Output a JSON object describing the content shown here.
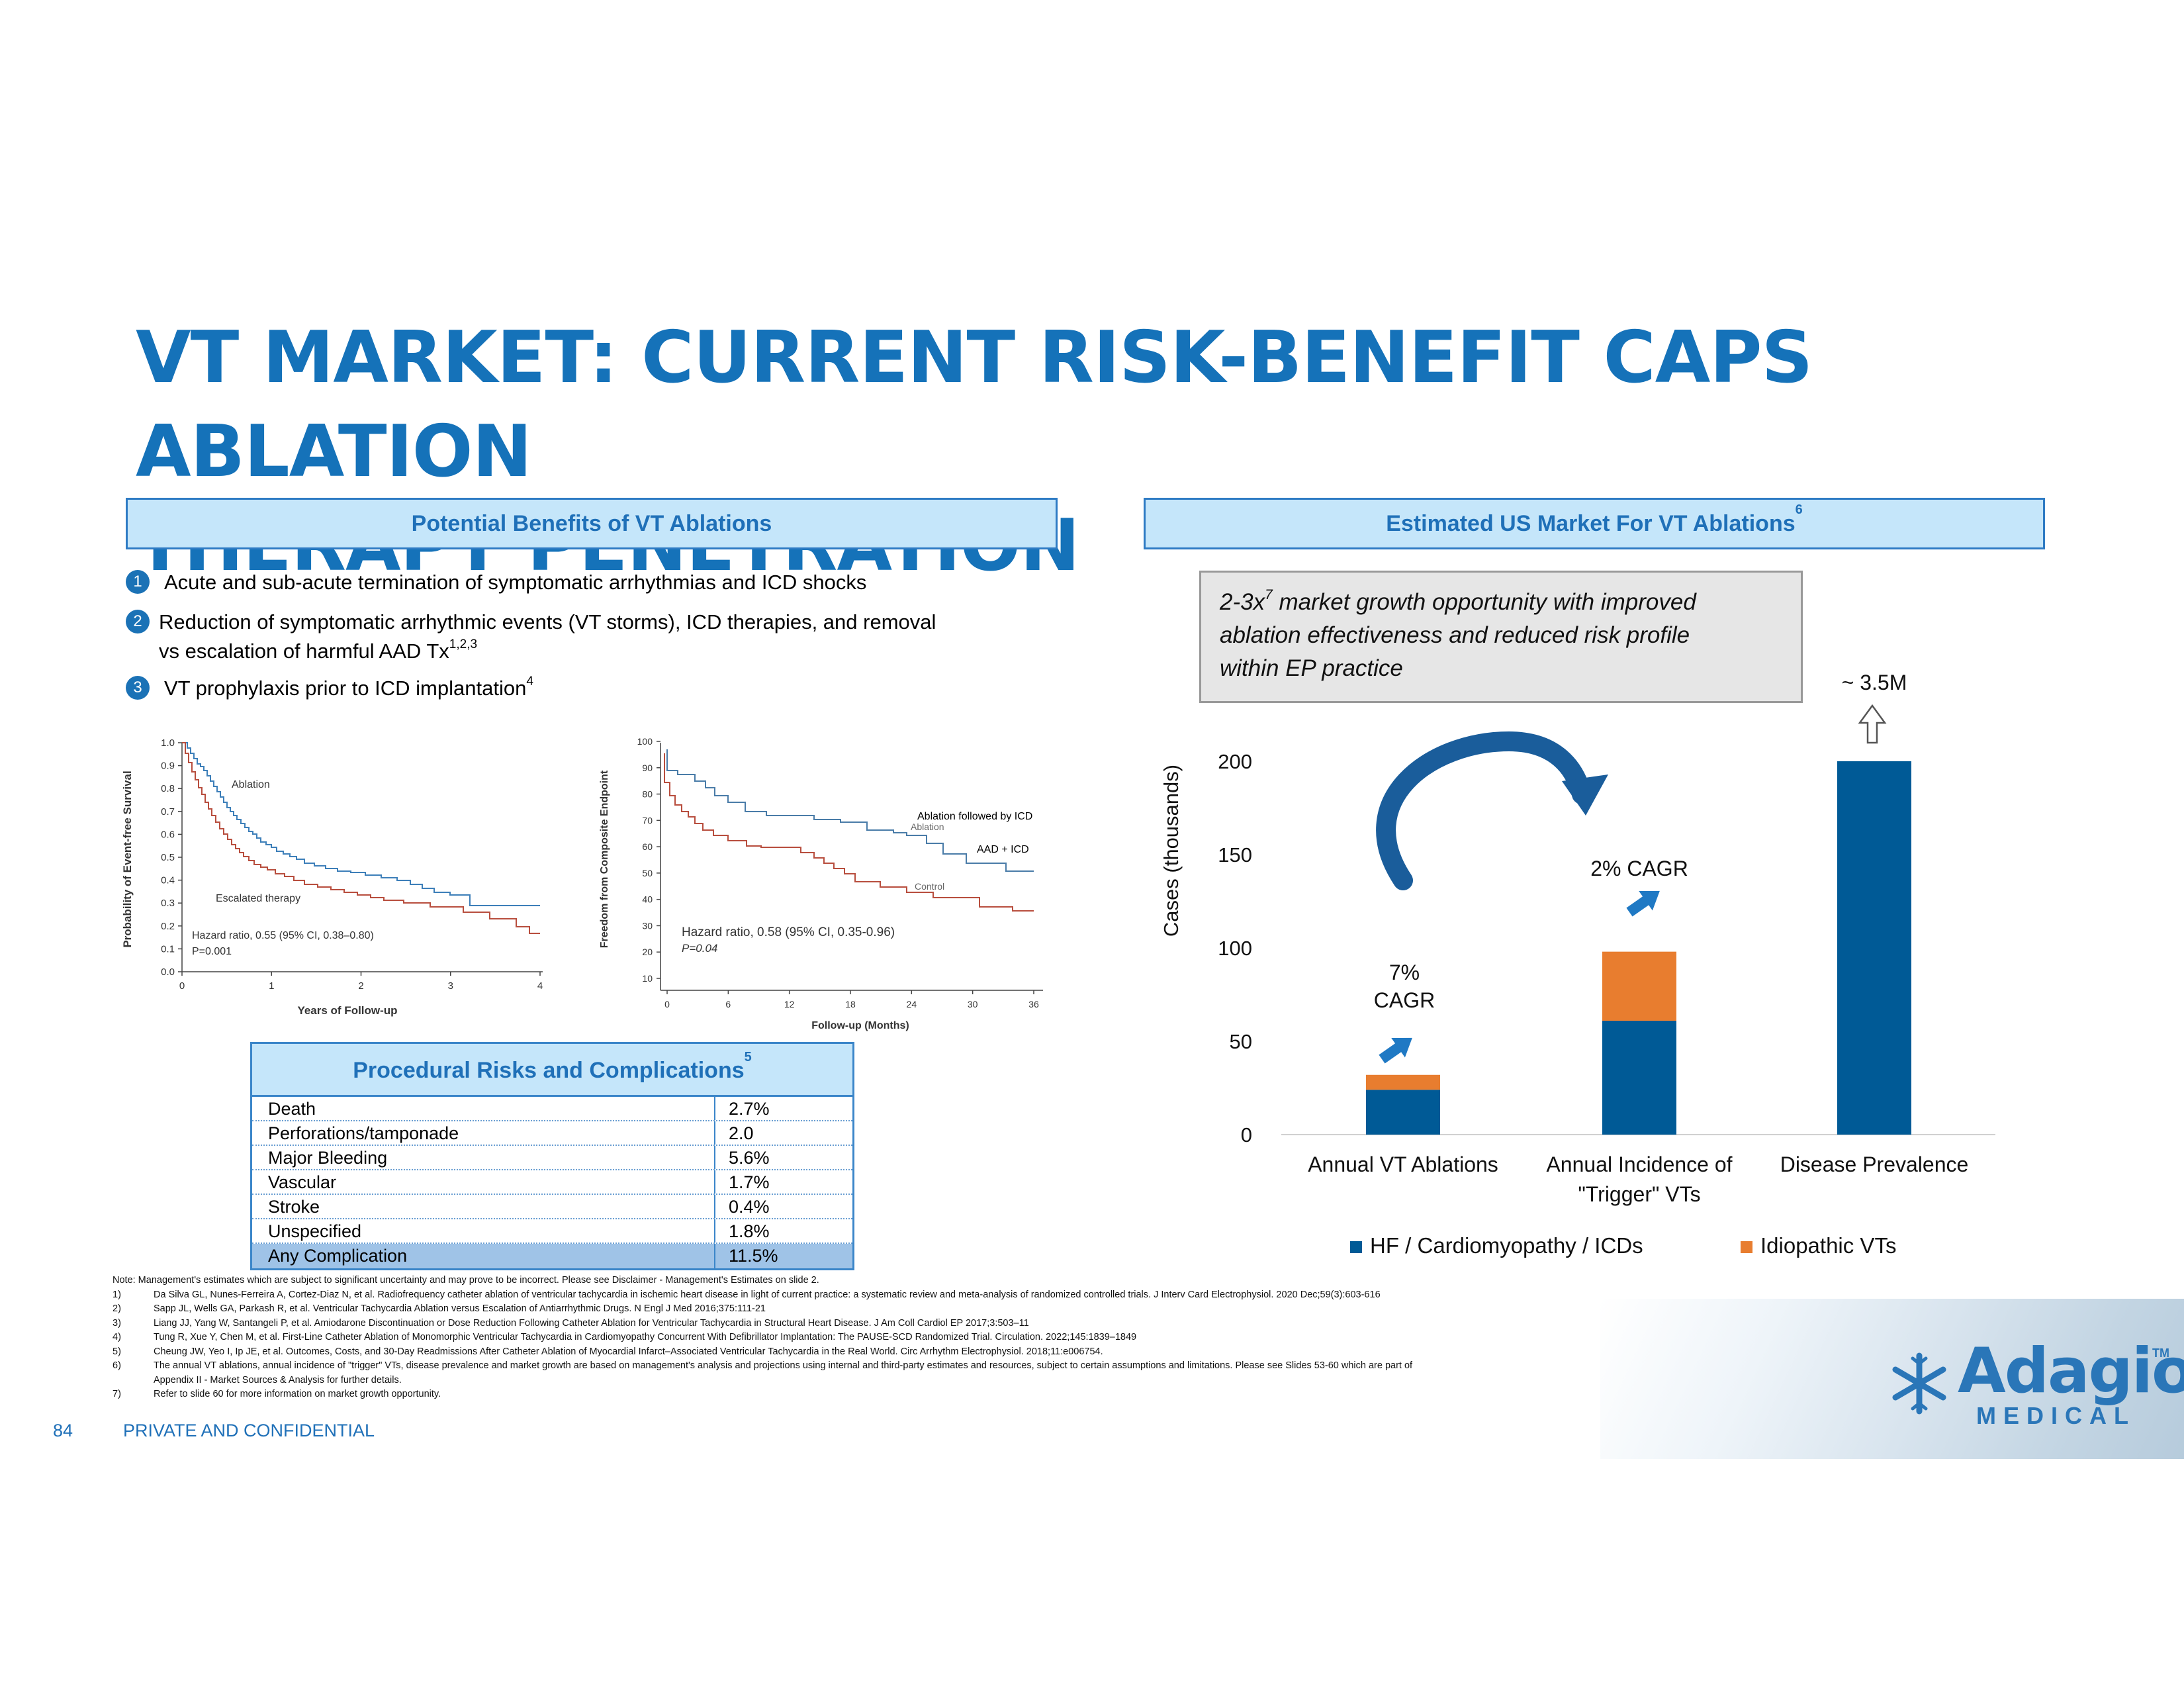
{
  "title": {
    "line1": "VT MARKET: CURRENT RISK-BENEFIT CAPS ABLATION",
    "line2": "THERAPY PENETRATION"
  },
  "left_header": "Potential Benefits of VT Ablations",
  "right_header": {
    "text": "Estimated US Market For VT Ablations",
    "sup": "6"
  },
  "benefits": [
    {
      "num": "1",
      "text": "Acute and sub-acute termination of symptomatic arrhythmias and ICD shocks",
      "sup": ""
    },
    {
      "num": "2",
      "text": "Reduction of symptomatic arrhythmic events (VT storms), ICD therapies, and removal vs escalation of harmful AAD Tx",
      "sup": "1,2,3"
    },
    {
      "num": "3",
      "text": "VT prophylaxis prior to ICD implantation",
      "sup": "4"
    }
  ],
  "km1": {
    "ylabel": "Probability of Event-free Survival",
    "xlabel": "Years of Follow-up",
    "yticks": [
      "0.0",
      "0.1",
      "0.2",
      "0.3",
      "0.4",
      "0.5",
      "0.6",
      "0.7",
      "0.8",
      "0.9",
      "1.0"
    ],
    "xticks": [
      "0",
      "1",
      "2",
      "3",
      "4"
    ],
    "label_ablation": "Ablation",
    "label_escalated": "Escalated therapy",
    "hazard": "Hazard ratio, 0.55 (95% CI, 0.38–0.80)",
    "pval": "P=0.001",
    "colors": {
      "ablation": "#3d7fb9",
      "escalated": "#b84e3e"
    }
  },
  "km2": {
    "ylabel": "Freedom from Composite Endpoint",
    "xlabel": "Follow-up (Months)",
    "yticks": [
      "10",
      "20",
      "30",
      "40",
      "50",
      "60",
      "70",
      "80",
      "90",
      "100"
    ],
    "xticks": [
      "0",
      "6",
      "12",
      "18",
      "24",
      "30",
      "36"
    ],
    "label_ablation_small": "Ablation",
    "label_control_small": "Control",
    "overlay_ablation": "Ablation followed by ICD",
    "overlay_aad": "AAD + ICD",
    "hazard": "Hazard ratio, 0.58 (95% CI, 0.35-0.96)",
    "pval": "P=0.04",
    "colors": {
      "ablation": "#4a7ca8",
      "control": "#b84e3e"
    }
  },
  "risks": {
    "header": "Procedural Risks and Complications",
    "header_sup": "5",
    "rows": [
      {
        "label": "Death",
        "value": "2.7%"
      },
      {
        "label": "Perforations/tamponade",
        "value": "2.0"
      },
      {
        "label": "Major Bleeding",
        "value": "5.6%"
      },
      {
        "label": "Vascular",
        "value": "1.7%"
      },
      {
        "label": "Stroke",
        "value": "0.4%"
      },
      {
        "label": "Unspecified",
        "value": "1.8%"
      },
      {
        "label": "Any Complication",
        "value": "11.5%"
      }
    ]
  },
  "callout": {
    "prefix": "2-3x",
    "sup": "7",
    "line1_rest": " market growth opportunity with improved",
    "line2": "ablation effectiveness and reduced risk profile",
    "line3": "within EP practice"
  },
  "chart_data": {
    "type": "bar",
    "stacked": true,
    "categories": [
      "Annual VT Ablations",
      "Annual Incidence of \"Trigger\" VTs",
      "Disease Prevalence"
    ],
    "category_lines": [
      [
        "Annual VT Ablations"
      ],
      [
        "Annual Incidence of",
        "\"Trigger\" VTs"
      ],
      [
        "Disease Prevalence"
      ]
    ],
    "series": [
      {
        "name": "HF / Cardiomyopathy / ICDs",
        "values": [
          24,
          61,
          200
        ],
        "color": "#005a96"
      },
      {
        "name": "Idiopathic VTs",
        "values": [
          8,
          37,
          0
        ],
        "color": "#e87d2f"
      }
    ],
    "ylabel": "Cases (thousands)",
    "ylim": [
      0,
      200
    ],
    "yticks": [
      0,
      50,
      100,
      150,
      200
    ],
    "annotations": {
      "cagr1_line1": "7%",
      "cagr1_line2": "CAGR",
      "cagr2": "2% CAGR",
      "prevalence": "~ 3.5M"
    },
    "legend_position": "bottom"
  },
  "footnotes": {
    "note": "Note: Management's estimates which are subject to significant uncertainty and may prove to be incorrect. Please see Disclaimer - Management's Estimates on slide 2.",
    "items": [
      {
        "num": "1)",
        "text": "Da Silva GL, Nunes-Ferreira A, Cortez-Diaz N, et al. Radiofrequency catheter ablation of ventricular tachycardia in ischemic heart disease in light of current practice: a systematic review and meta-analysis of randomized controlled trials. J Interv Card Electrophysiol. 2020 Dec;59(3):603-616"
      },
      {
        "num": "2)",
        "text": "Sapp JL, Wells GA, Parkash R, et al. Ventricular Tachycardia Ablation versus Escalation of Antiarrhythmic Drugs. N Engl J Med 2016;375:111-21"
      },
      {
        "num": "3)",
        "text": "Liang JJ, Yang W, Santangeli P, et al. Amiodarone Discontinuation or Dose Reduction Following Catheter Ablation for Ventricular Tachycardia in Structural Heart Disease. J Am Coll Cardiol EP 2017;3:503–11"
      },
      {
        "num": "4)",
        "text": "Tung R, Xue Y, Chen M, et al. First-Line Catheter Ablation of Monomorphic Ventricular Tachycardia in Cardiomyopathy Concurrent With Defibrillator Implantation: The PAUSE-SCD Randomized Trial. Circulation. 2022;145:1839–1849"
      },
      {
        "num": "5)",
        "text": "Cheung JW, Yeo I, Ip JE, et al. Outcomes, Costs, and 30-Day Readmissions After Catheter Ablation of Myocardial Infarct–Associated Ventricular Tachycardia in the Real World. Circ Arrhythm Electrophysiol. 2018;11:e006754."
      },
      {
        "num": "6)",
        "text": "The annual VT ablations, annual incidence of \"trigger\" VTs, disease prevalence and market growth are based on management's analysis and projections using internal and third-party estimates and resources, subject to certain assumptions and limitations. Please see Slides 53-60 which are part of"
      },
      {
        "num": "",
        "text": "Appendix II - Market Sources & Analysis for further details."
      },
      {
        "num": "7)",
        "text": "Refer to slide 60 for more information on market growth opportunity."
      }
    ]
  },
  "page_number": "84",
  "confidential": "PRIVATE AND CONFIDENTIAL",
  "logo": {
    "name": "Adagio",
    "tm": "TM",
    "sub": "MEDICAL"
  }
}
